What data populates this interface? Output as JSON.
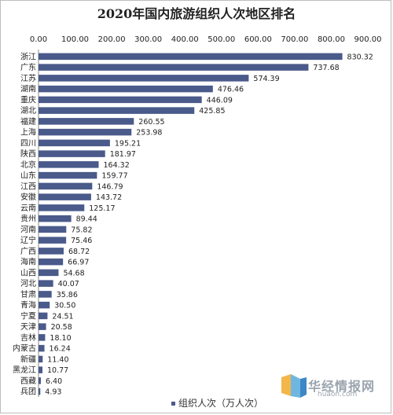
{
  "chart_data": {
    "type": "bar",
    "orientation": "horizontal",
    "title": "2020年国内旅游组织人次地区排名",
    "xlabel": "",
    "ylabel": "",
    "xlim": [
      0,
      900
    ],
    "x_ticks": [
      "0.00",
      "100.00",
      "200.00",
      "300.00",
      "400.00",
      "500.00",
      "600.00",
      "700.00",
      "800.00",
      "900.00"
    ],
    "x_axis_position": "top",
    "grid": false,
    "legend_position": "bottom",
    "bar_color": "#4a5a8a",
    "categories": [
      "浙江",
      "广东",
      "江苏",
      "湖南",
      "重庆",
      "湖北",
      "福建",
      "上海",
      "四川",
      "陕西",
      "北京",
      "山东",
      "江西",
      "安徽",
      "云南",
      "贵州",
      "河南",
      "辽宁",
      "广西",
      "海南",
      "山西",
      "河北",
      "甘肃",
      "青海",
      "宁夏",
      "天津",
      "吉林",
      "内蒙古",
      "新疆",
      "黑龙江",
      "西藏",
      "兵团"
    ],
    "series": [
      {
        "name": "组织人次（万人次）",
        "values": [
          830.32,
          737.68,
          574.39,
          476.46,
          446.09,
          425.85,
          260.55,
          253.98,
          195.21,
          181.97,
          164.32,
          159.77,
          146.79,
          143.72,
          125.17,
          89.44,
          75.82,
          75.46,
          68.72,
          66.97,
          54.68,
          40.07,
          35.86,
          30.5,
          24.51,
          20.58,
          18.1,
          16.24,
          11.4,
          10.77,
          6.4,
          4.93
        ],
        "labels": [
          "830.32",
          "737.68",
          "574.39",
          "476.46",
          "446.09",
          "425.85",
          "260.55",
          "253.98",
          "195.21",
          "181.97",
          "164.32",
          "159.77",
          "146.79",
          "143.72",
          "125.17",
          "89.44",
          "75.82",
          "75.46",
          "68.72",
          "66.97",
          "54.68",
          "40.07",
          "35.86",
          "30.50",
          "24.51",
          "20.58",
          "18.10",
          "16.24",
          "11.40",
          "10.77",
          "6.40",
          "4.93"
        ]
      }
    ]
  },
  "legend": {
    "label": "组织人次（万人次）"
  },
  "watermark": {
    "brand_cn": "华经情报网",
    "brand_en": "huaon.com"
  }
}
